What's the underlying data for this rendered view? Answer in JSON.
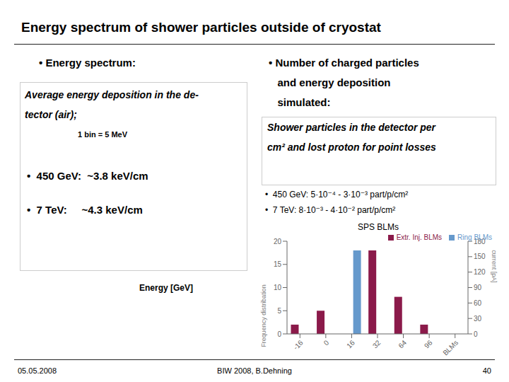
{
  "title": "Energy spectrum of shower particles outside of cryostat",
  "annotations": [
    "• Energy spectrum:",
    "Average energy deposition in the de-",
    "tector (air);",
    "1 bin = 5 MeV",
    "•  450 GeV:  ~3.8 keV/cm",
    "•  7 TeV:     ~4.3 keV/cm",
    "Energy [GeV]",
    "• Number of charged particles",
    "   and energy deposition",
    "   simulated:",
    "Shower particles in the detector per",
    "cm² and lost proton for point losses",
    "•  450 GeV: 5·10⁻⁴ - 3·10⁻³ part/p/cm²",
    "•  7 TeV: 8·10⁻³ - 4·10⁻² part/p/cm²",
    "05.05.2008",
    "BIW 2008, B.Dehning",
    "40"
  ],
  "chart_data": {
    "type": "bar",
    "title": "SPS BLMs",
    "categories": [
      "-16",
      "0",
      "16",
      "32",
      "64",
      "96",
      "BLMs"
    ],
    "series": [
      {
        "name": "Extr. Inj. BLMs",
        "color": "#8B1A4A",
        "values": [
          2,
          5,
          0,
          18,
          8,
          2,
          0
        ]
      },
      {
        "name": "Ring BLMs",
        "color": "#6699CC",
        "values": [
          0,
          0,
          18,
          0,
          0,
          0,
          0
        ]
      }
    ],
    "y_label": "Frequency distribation",
    "y2_label": "current [pA]",
    "ylim": [
      0,
      20
    ],
    "yticks": [
      0,
      5,
      10,
      15,
      20
    ],
    "y2lim": [
      0,
      180
    ],
    "y2ticks": [
      0,
      30,
      60,
      90,
      120,
      150,
      180
    ],
    "legend": "upper right",
    "grid": false
  }
}
